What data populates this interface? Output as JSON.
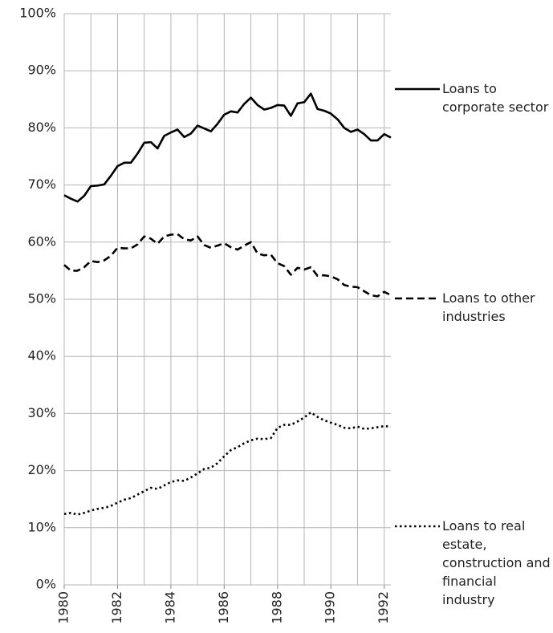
{
  "chart_data": {
    "type": "line",
    "x": [
      1980,
      1980.25,
      1980.5,
      1980.75,
      1981,
      1981.25,
      1981.5,
      1981.75,
      1982,
      1982.25,
      1982.5,
      1982.75,
      1983,
      1983.25,
      1983.5,
      1983.75,
      1984,
      1984.25,
      1984.5,
      1984.75,
      1985,
      1985.25,
      1985.5,
      1985.75,
      1986,
      1986.25,
      1986.5,
      1986.75,
      1987,
      1987.25,
      1987.5,
      1987.75,
      1988,
      1988.25,
      1988.5,
      1988.75,
      1989,
      1989.25,
      1989.5,
      1989.75,
      1990,
      1990.25,
      1990.5,
      1990.75,
      1991,
      1991.25,
      1991.5,
      1991.75,
      1992,
      1992.25
    ],
    "series": [
      {
        "name": "Loans to corporate sector",
        "color": "#000000",
        "dash": "solid",
        "values": [
          68.2,
          67.6,
          67.1,
          68.1,
          69.8,
          69.9,
          70.1,
          71.6,
          73.3,
          73.9,
          73.9,
          75.5,
          77.4,
          77.5,
          76.4,
          78.6,
          79.2,
          79.7,
          78.4,
          79.0,
          80.4,
          79.9,
          79.4,
          80.7,
          82.3,
          82.9,
          82.7,
          84.2,
          85.3,
          84.0,
          83.2,
          83.5,
          84.0,
          83.9,
          82.1,
          84.3,
          84.5,
          86.0,
          83.3,
          83.0,
          82.5,
          81.5,
          80.0,
          79.3,
          79.7,
          78.9,
          77.8,
          77.8,
          78.9,
          78.3
        ]
      },
      {
        "name": "Loans to other industries",
        "color": "#000000",
        "dash": "dashed",
        "values": [
          56.0,
          55.0,
          55.0,
          55.6,
          56.7,
          56.5,
          56.8,
          57.6,
          59.0,
          58.9,
          58.9,
          59.6,
          61.0,
          60.6,
          59.7,
          61.0,
          61.3,
          61.4,
          60.5,
          60.3,
          61.0,
          59.5,
          59.0,
          59.4,
          59.8,
          59.1,
          58.7,
          59.4,
          60.0,
          58.0,
          57.7,
          57.8,
          56.3,
          55.8,
          54.3,
          55.5,
          55.2,
          55.6,
          54.1,
          54.2,
          54.0,
          53.5,
          52.5,
          52.2,
          52.1,
          51.4,
          50.7,
          50.5,
          51.3,
          50.7
        ]
      },
      {
        "name": "Loans to real estate, construction and financial industry",
        "color": "#000000",
        "dash": "dotted",
        "values": [
          12.4,
          12.6,
          12.3,
          12.6,
          13.0,
          13.3,
          13.5,
          13.8,
          14.4,
          14.9,
          15.2,
          15.8,
          16.4,
          17.0,
          16.8,
          17.4,
          18.0,
          18.3,
          18.2,
          18.8,
          19.5,
          20.3,
          20.5,
          21.3,
          22.5,
          23.6,
          24.1,
          24.8,
          25.3,
          25.6,
          25.5,
          25.7,
          27.5,
          28.0,
          28.0,
          28.6,
          29.3,
          30.2,
          29.4,
          28.8,
          28.4,
          28.0,
          27.5,
          27.4,
          27.7,
          27.3,
          27.4,
          27.6,
          27.8,
          27.7
        ]
      }
    ],
    "xlim": [
      1980,
      1992.25
    ],
    "xticks": [
      1980,
      1982,
      1984,
      1986,
      1988,
      1990,
      1992
    ],
    "xminorticks": [
      1981,
      1983,
      1985,
      1987,
      1989,
      1991
    ],
    "ylim": [
      0,
      100
    ],
    "yticks": [
      {
        "value": 0,
        "label": "0%"
      },
      {
        "value": 10,
        "label": "10%"
      },
      {
        "value": 20,
        "label": "20%"
      },
      {
        "value": 30,
        "label": "30%"
      },
      {
        "value": 40,
        "label": "40%"
      },
      {
        "value": 50,
        "label": "50%"
      },
      {
        "value": 60,
        "label": "60%"
      },
      {
        "value": 70,
        "label": "70%"
      },
      {
        "value": 80,
        "label": "80%"
      },
      {
        "value": 90,
        "label": "90%"
      },
      {
        "value": 100,
        "label": "100%"
      }
    ],
    "grid": true,
    "legend": "right"
  }
}
